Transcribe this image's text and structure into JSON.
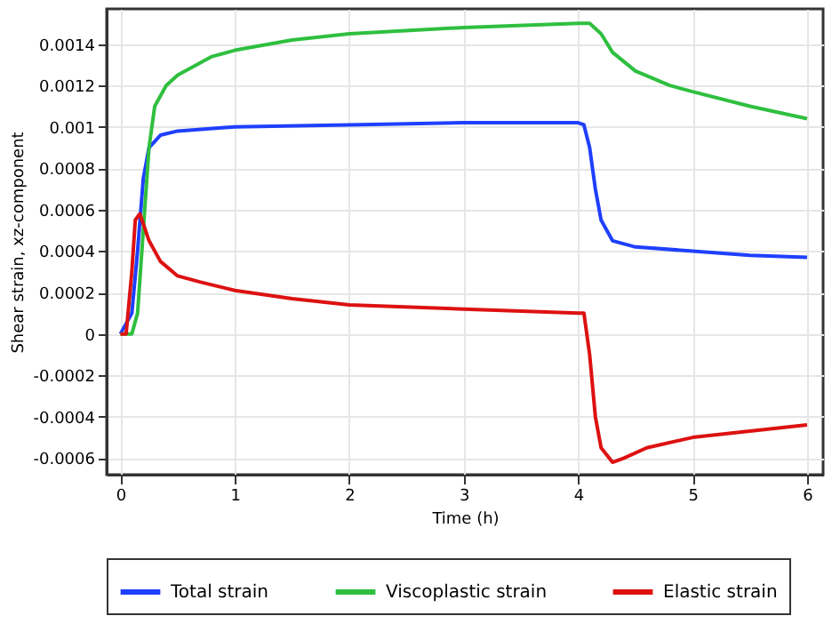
{
  "chart_data": {
    "type": "line",
    "xlabel": "Time (h)",
    "ylabel": "Shear strain, xz-component",
    "xlim": [
      -0.12,
      6.14
    ],
    "xticks": [
      0,
      1,
      2,
      3,
      4,
      5,
      6
    ],
    "ylim": [
      -0.00068,
      0.00157
    ],
    "yticks": [
      -0.0006,
      -0.0004,
      -0.0002,
      0,
      0.0002,
      0.0004,
      0.0006,
      0.0008,
      0.001,
      0.0012,
      0.0014
    ],
    "grid": true,
    "legend": "bottom",
    "line_style": "solid",
    "marker": "none",
    "series": [
      {
        "name": "Total strain",
        "color": "#1f3fff",
        "x": [
          0,
          0.1,
          0.15,
          0.2,
          0.25,
          0.35,
          0.5,
          1,
          2,
          3,
          4,
          4.05,
          4.1,
          4.15,
          4.2,
          4.3,
          4.5,
          5,
          5.5,
          6
        ],
        "values": [
          0,
          0.0001,
          0.0004,
          0.00075,
          0.0009,
          0.00096,
          0.00098,
          0.001,
          0.00101,
          0.00102,
          0.00102,
          0.00101,
          0.0009,
          0.0007,
          0.00055,
          0.00045,
          0.00042,
          0.0004,
          0.00038,
          0.00037
        ]
      },
      {
        "name": "Viscoplastic strain",
        "color": "#2fbf3f",
        "x": [
          0,
          0.1,
          0.15,
          0.2,
          0.25,
          0.3,
          0.4,
          0.5,
          0.8,
          1,
          1.5,
          2,
          3,
          4,
          4.1,
          4.2,
          4.3,
          4.5,
          4.8,
          5,
          5.5,
          6
        ],
        "values": [
          0,
          0,
          0.0001,
          0.0005,
          0.0009,
          0.0011,
          0.0012,
          0.00125,
          0.00134,
          0.00137,
          0.00142,
          0.00145,
          0.00148,
          0.0015,
          0.0015,
          0.00145,
          0.00136,
          0.00127,
          0.0012,
          0.00117,
          0.0011,
          0.00104
        ]
      },
      {
        "name": "Elastic strain",
        "color": "#dd1111",
        "x": [
          0,
          0.05,
          0.1,
          0.13,
          0.17,
          0.25,
          0.35,
          0.5,
          0.7,
          1,
          1.5,
          2,
          3,
          4,
          4.05,
          4.1,
          4.15,
          4.2,
          4.3,
          4.4,
          4.6,
          5,
          5.5,
          6
        ],
        "values": [
          0,
          0,
          0.0003,
          0.00055,
          0.00058,
          0.00045,
          0.00035,
          0.00028,
          0.00025,
          0.00021,
          0.00017,
          0.00014,
          0.00012,
          0.0001,
          0.0001,
          -0.0001,
          -0.0004,
          -0.00055,
          -0.00062,
          -0.0006,
          -0.00055,
          -0.0005,
          -0.00047,
          -0.00044
        ]
      }
    ]
  }
}
